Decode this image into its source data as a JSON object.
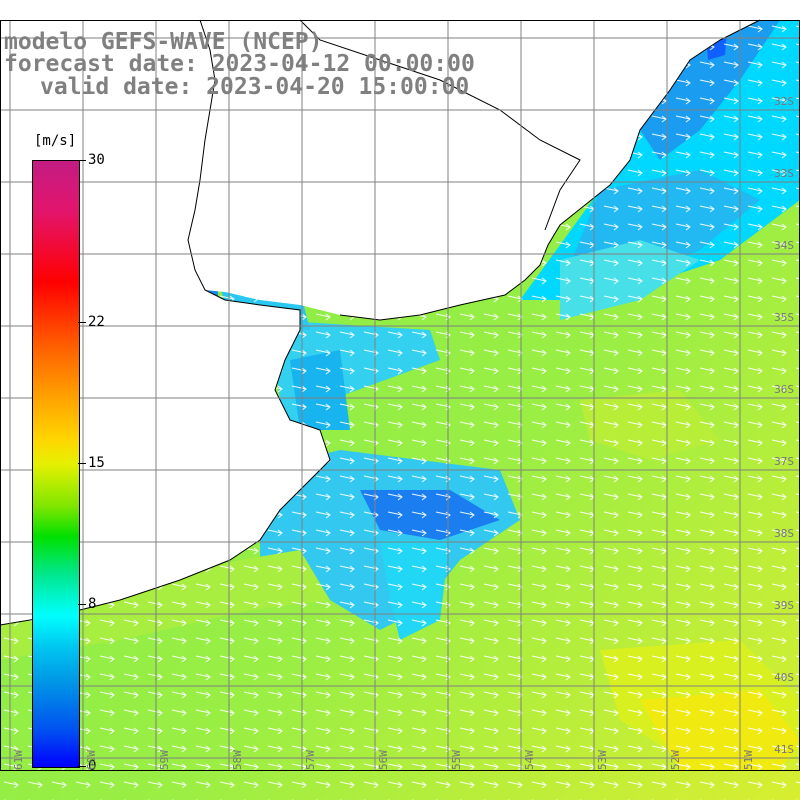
{
  "title": {
    "line1": "modelo GEFS-WAVE (NCEP)",
    "line2": "forecast date: 2023-04-12 00:00:00",
    "line3": "valid date: 2023-04-20 15:00:00"
  },
  "colorbar": {
    "unit": "[m/s]",
    "min": 0,
    "max": 30,
    "ticks": [
      {
        "value": 30,
        "label": "30"
      },
      {
        "value": 22,
        "label": "22"
      },
      {
        "value": 15,
        "label": "15"
      },
      {
        "value": 8,
        "label": "8"
      },
      {
        "value": 0,
        "label": "0"
      }
    ]
  },
  "longitude_labels": [
    "61W",
    "60W",
    "59W",
    "58W",
    "57W",
    "56W",
    "55W",
    "54W",
    "53W",
    "52W",
    "51W"
  ],
  "latitude_labels": [
    "32S",
    "33S",
    "34S",
    "35S",
    "36S",
    "37S",
    "38S",
    "39S",
    "40S",
    "41S"
  ],
  "colors": {
    "land": "#ffffff",
    "grid": "#808080",
    "coast": "#000000",
    "arrows": "#ffffff",
    "title": "#808080"
  }
}
